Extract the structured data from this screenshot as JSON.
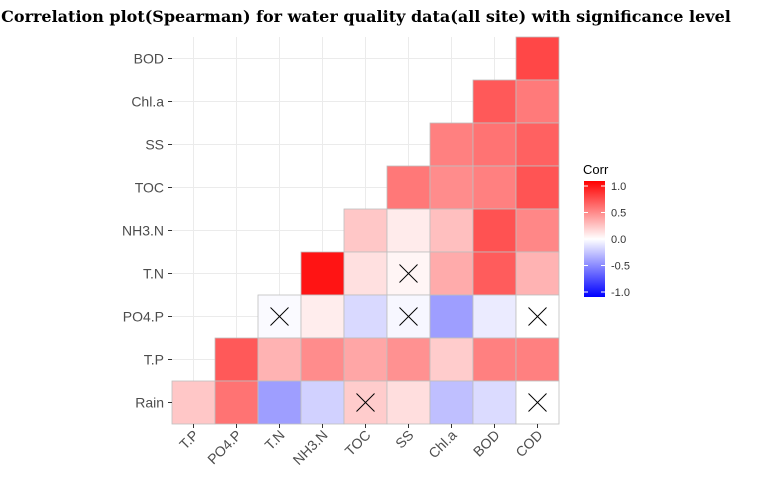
{
  "chart_data": {
    "type": "heatmap",
    "title": "Correlation plot(Spearman) for water quality data(all site) with significance level",
    "xlabel": "",
    "ylabel": "",
    "x_categories": [
      "T.P",
      "PO4.P",
      "T.N",
      "NH3.N",
      "TOC",
      "SS",
      "Chl.a",
      "BOD",
      "COD"
    ],
    "y_categories": [
      "BOD",
      "Chl.a",
      "SS",
      "TOC",
      "NH3.N",
      "T.N",
      "PO4.P",
      "T.P",
      "Rain"
    ],
    "cells": [
      {
        "x": "COD",
        "y": "BOD",
        "value": 0.72,
        "significant": true
      },
      {
        "x": "BOD",
        "y": "Chl.a",
        "value": 0.65,
        "significant": true
      },
      {
        "x": "COD",
        "y": "Chl.a",
        "value": 0.52,
        "significant": true
      },
      {
        "x": "Chl.a",
        "y": "SS",
        "value": 0.5,
        "significant": true
      },
      {
        "x": "BOD",
        "y": "SS",
        "value": 0.55,
        "significant": true
      },
      {
        "x": "COD",
        "y": "SS",
        "value": 0.62,
        "significant": true
      },
      {
        "x": "SS",
        "y": "TOC",
        "value": 0.53,
        "significant": true
      },
      {
        "x": "Chl.a",
        "y": "TOC",
        "value": 0.45,
        "significant": true
      },
      {
        "x": "BOD",
        "y": "TOC",
        "value": 0.5,
        "significant": true
      },
      {
        "x": "COD",
        "y": "TOC",
        "value": 0.67,
        "significant": true
      },
      {
        "x": "TOC",
        "y": "NH3.N",
        "value": 0.22,
        "significant": true
      },
      {
        "x": "SS",
        "y": "NH3.N",
        "value": 0.08,
        "significant": true
      },
      {
        "x": "Chl.a",
        "y": "NH3.N",
        "value": 0.25,
        "significant": true
      },
      {
        "x": "BOD",
        "y": "NH3.N",
        "value": 0.68,
        "significant": true
      },
      {
        "x": "COD",
        "y": "NH3.N",
        "value": 0.47,
        "significant": true
      },
      {
        "x": "NH3.N",
        "y": "T.N",
        "value": 0.92,
        "significant": true
      },
      {
        "x": "TOC",
        "y": "T.N",
        "value": 0.12,
        "significant": true
      },
      {
        "x": "SS",
        "y": "T.N",
        "value": 0.04,
        "significant": false
      },
      {
        "x": "Chl.a",
        "y": "T.N",
        "value": 0.33,
        "significant": true
      },
      {
        "x": "BOD",
        "y": "T.N",
        "value": 0.64,
        "significant": true
      },
      {
        "x": "COD",
        "y": "T.N",
        "value": 0.3,
        "significant": true
      },
      {
        "x": "T.N",
        "y": "PO4.P",
        "value": -0.02,
        "significant": false
      },
      {
        "x": "NH3.N",
        "y": "PO4.P",
        "value": 0.07,
        "significant": true
      },
      {
        "x": "TOC",
        "y": "PO4.P",
        "value": -0.15,
        "significant": true
      },
      {
        "x": "SS",
        "y": "PO4.P",
        "value": -0.03,
        "significant": false
      },
      {
        "x": "Chl.a",
        "y": "PO4.P",
        "value": -0.38,
        "significant": true
      },
      {
        "x": "BOD",
        "y": "PO4.P",
        "value": -0.08,
        "significant": true
      },
      {
        "x": "COD",
        "y": "PO4.P",
        "value": 0.0,
        "significant": false
      },
      {
        "x": "PO4.P",
        "y": "T.P",
        "value": 0.65,
        "significant": true
      },
      {
        "x": "T.N",
        "y": "T.P",
        "value": 0.3,
        "significant": true
      },
      {
        "x": "NH3.N",
        "y": "T.P",
        "value": 0.45,
        "significant": true
      },
      {
        "x": "TOC",
        "y": "T.P",
        "value": 0.35,
        "significant": true
      },
      {
        "x": "SS",
        "y": "T.P",
        "value": 0.43,
        "significant": true
      },
      {
        "x": "Chl.a",
        "y": "T.P",
        "value": 0.2,
        "significant": true
      },
      {
        "x": "BOD",
        "y": "T.P",
        "value": 0.5,
        "significant": true
      },
      {
        "x": "COD",
        "y": "T.P",
        "value": 0.5,
        "significant": true
      },
      {
        "x": "T.P",
        "y": "Rain",
        "value": 0.22,
        "significant": true
      },
      {
        "x": "PO4.P",
        "y": "Rain",
        "value": 0.55,
        "significant": true
      },
      {
        "x": "T.N",
        "y": "Rain",
        "value": -0.38,
        "significant": true
      },
      {
        "x": "NH3.N",
        "y": "Rain",
        "value": -0.18,
        "significant": true
      },
      {
        "x": "TOC",
        "y": "Rain",
        "value": 0.2,
        "significant": false
      },
      {
        "x": "SS",
        "y": "Rain",
        "value": 0.13,
        "significant": true
      },
      {
        "x": "Chl.a",
        "y": "Rain",
        "value": -0.25,
        "significant": true
      },
      {
        "x": "BOD",
        "y": "Rain",
        "value": -0.14,
        "significant": true
      },
      {
        "x": "COD",
        "y": "Rain",
        "value": 0.0,
        "significant": false
      }
    ],
    "color_scale": {
      "low": "#0000FF",
      "mid": "#FFFFFF",
      "high": "#FF0000",
      "limits": [
        -1,
        1
      ]
    },
    "legend": {
      "title": "Corr",
      "position": "right",
      "ticks": [
        "1.0",
        "0.5",
        "0.0",
        "-0.5",
        "-1.0"
      ]
    },
    "grid": true
  }
}
